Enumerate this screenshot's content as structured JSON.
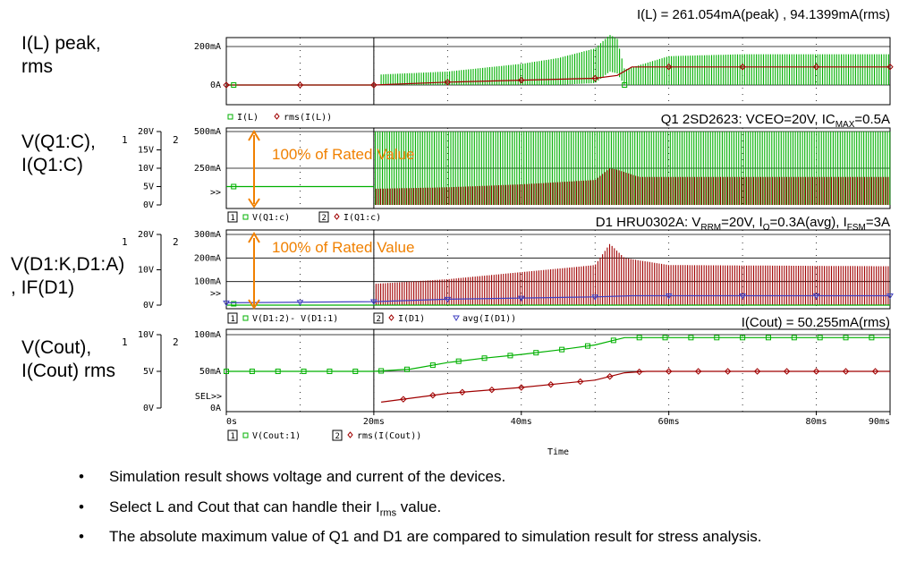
{
  "left_labels": [
    {
      "line1": "I(L) peak,",
      "line2": "rms"
    },
    {
      "line1": "V(Q1:C),",
      "line2": "I(Q1:C)"
    },
    {
      "line1": "V(D1:K,D1:A)",
      "line2": ", IF(D1)"
    },
    {
      "line1": "V(Cout),",
      "line2": "I(Cout) rms"
    }
  ],
  "headers": {
    "p1": "I(L) = 261.054mA(peak) , 94.1399mA(rms)",
    "p2_pre": "Q1 2SD2623: VCEO=20V, IC",
    "p2_sub": "MAX",
    "p2_post": "=0.5A",
    "p3_a": "D1 HRU0302A: V",
    "p3_asub": "RRM",
    "p3_b": "=20V, I",
    "p3_bsub": "O",
    "p3_c": "=0.3A(avg), I",
    "p3_csub": "FSM",
    "p3_d": "=3A",
    "p4": "I(Cout) = 50.255mA(rms)"
  },
  "annotations": {
    "rated": "100% of Rated Value"
  },
  "bullets": {
    "b1": "Simulation result shows voltage and current of the devices.",
    "b2_pre": "Select L and Cout that can handle their I",
    "b2_sub": "rms",
    "b2_post": " value.",
    "b3": "The absolute maximum value of Q1 and D1 are compared to simulation result for stress analysis.",
    "bullet_glyph": "•"
  },
  "chart_data": [
    {
      "type": "line",
      "panel": "I(L)",
      "y_ticks": [
        "200mA",
        "0A"
      ],
      "legend": [
        "I(L)",
        "rms(I(L))"
      ],
      "series": [
        {
          "name": "I(L)",
          "color": "#00b000",
          "x_ms": [
            0,
            20,
            21,
            30,
            40,
            45,
            50,
            52,
            53,
            54,
            60,
            70,
            80,
            90
          ],
          "peak_mA": [
            0,
            0,
            55,
            70,
            110,
            140,
            190,
            261,
            240,
            80,
            150,
            160,
            160,
            160
          ],
          "low_mA": [
            0,
            0,
            0,
            0,
            0,
            0,
            10,
            70,
            60,
            0,
            0,
            0,
            0,
            0
          ]
        },
        {
          "name": "rms(I(L))",
          "color": "#a00000",
          "x_ms": [
            0,
            20,
            30,
            40,
            50,
            53,
            55,
            60,
            70,
            80,
            90
          ],
          "y_mA": [
            0,
            0,
            15,
            25,
            35,
            50,
            94,
            94,
            94,
            94,
            94
          ]
        }
      ]
    },
    {
      "type": "line",
      "panel": "V(Q1:C), I(Q1:C)",
      "y1_ticks": [
        "20V",
        "15V",
        "10V",
        "5V",
        "0V"
      ],
      "y2_ticks": [
        "500mA",
        "250mA"
      ],
      "axis_ids": [
        "1",
        "2"
      ],
      "cursor_mark": ">>",
      "legend": [
        "V(Q1:c)",
        "I(Q1:c)"
      ],
      "series": [
        {
          "name": "V(Q1:c)",
          "color": "#00b000",
          "x_ms": [
            0,
            20,
            21,
            90
          ],
          "y_V": [
            5,
            5,
            20,
            20
          ]
        },
        {
          "name": "I(Q1:c)",
          "color": "#a00000",
          "x_ms": [
            20,
            30,
            40,
            50,
            52,
            53,
            56,
            90
          ],
          "peak_mA": [
            110,
            120,
            140,
            170,
            250,
            240,
            190,
            190
          ]
        }
      ]
    },
    {
      "type": "line",
      "panel": "V(D1:K,D1:A), IF(D1)",
      "y1_ticks": [
        "20V",
        "10V",
        "0V"
      ],
      "y2_ticks": [
        "300mA",
        "200mA",
        "100mA"
      ],
      "axis_ids": [
        "1",
        "2"
      ],
      "cursor_mark": ">>",
      "legend": [
        "V(D1:2)- V(D1:1)",
        "I(D1)",
        "avg(I(D1))"
      ],
      "series": [
        {
          "name": "V(D1:2)- V(D1:1)",
          "color": "#00b000",
          "x_ms": [
            0,
            90
          ],
          "y_V": [
            0,
            0
          ]
        },
        {
          "name": "I(D1)",
          "color": "#a00000",
          "x_ms": [
            20,
            30,
            40,
            50,
            52,
            54,
            60,
            90
          ],
          "peak_mA": [
            90,
            110,
            140,
            170,
            260,
            200,
            170,
            165
          ]
        },
        {
          "name": "avg(I(D1))",
          "color": "#4040c0",
          "x_ms": [
            0,
            20,
            30,
            40,
            50,
            55,
            90
          ],
          "y_mA": [
            10,
            15,
            25,
            30,
            35,
            40,
            40
          ]
        }
      ]
    },
    {
      "type": "line",
      "panel": "V(Cout), I(Cout) rms",
      "y1_ticks": [
        "10V",
        "5V",
        "0V"
      ],
      "y2_ticks": [
        "100mA",
        "50mA",
        "0A"
      ],
      "axis_ids": [
        "1",
        "2"
      ],
      "cursor_mark": "SEL>>",
      "legend": [
        "V(Cout:1)",
        "rms(I(Cout))"
      ],
      "x_ticks": [
        "0s",
        "20ms",
        "40ms",
        "60ms",
        "80ms",
        "90ms"
      ],
      "xlabel": "Time",
      "series": [
        {
          "name": "V(Cout:1)",
          "color": "#00b000",
          "x_ms": [
            0,
            20,
            25,
            30,
            35,
            40,
            45,
            50,
            54,
            55,
            90
          ],
          "y_V": [
            5,
            5,
            5.3,
            6.2,
            6.8,
            7.3,
            7.9,
            8.6,
            9.6,
            9.6,
            9.6
          ]
        },
        {
          "name": "rms(I(Cout))",
          "color": "#a00000",
          "x_ms": [
            0,
            20,
            21,
            30,
            40,
            50,
            54,
            57,
            90
          ],
          "y_mA": [
            null,
            null,
            8,
            20,
            28,
            38,
            48,
            50,
            50
          ]
        }
      ]
    }
  ]
}
